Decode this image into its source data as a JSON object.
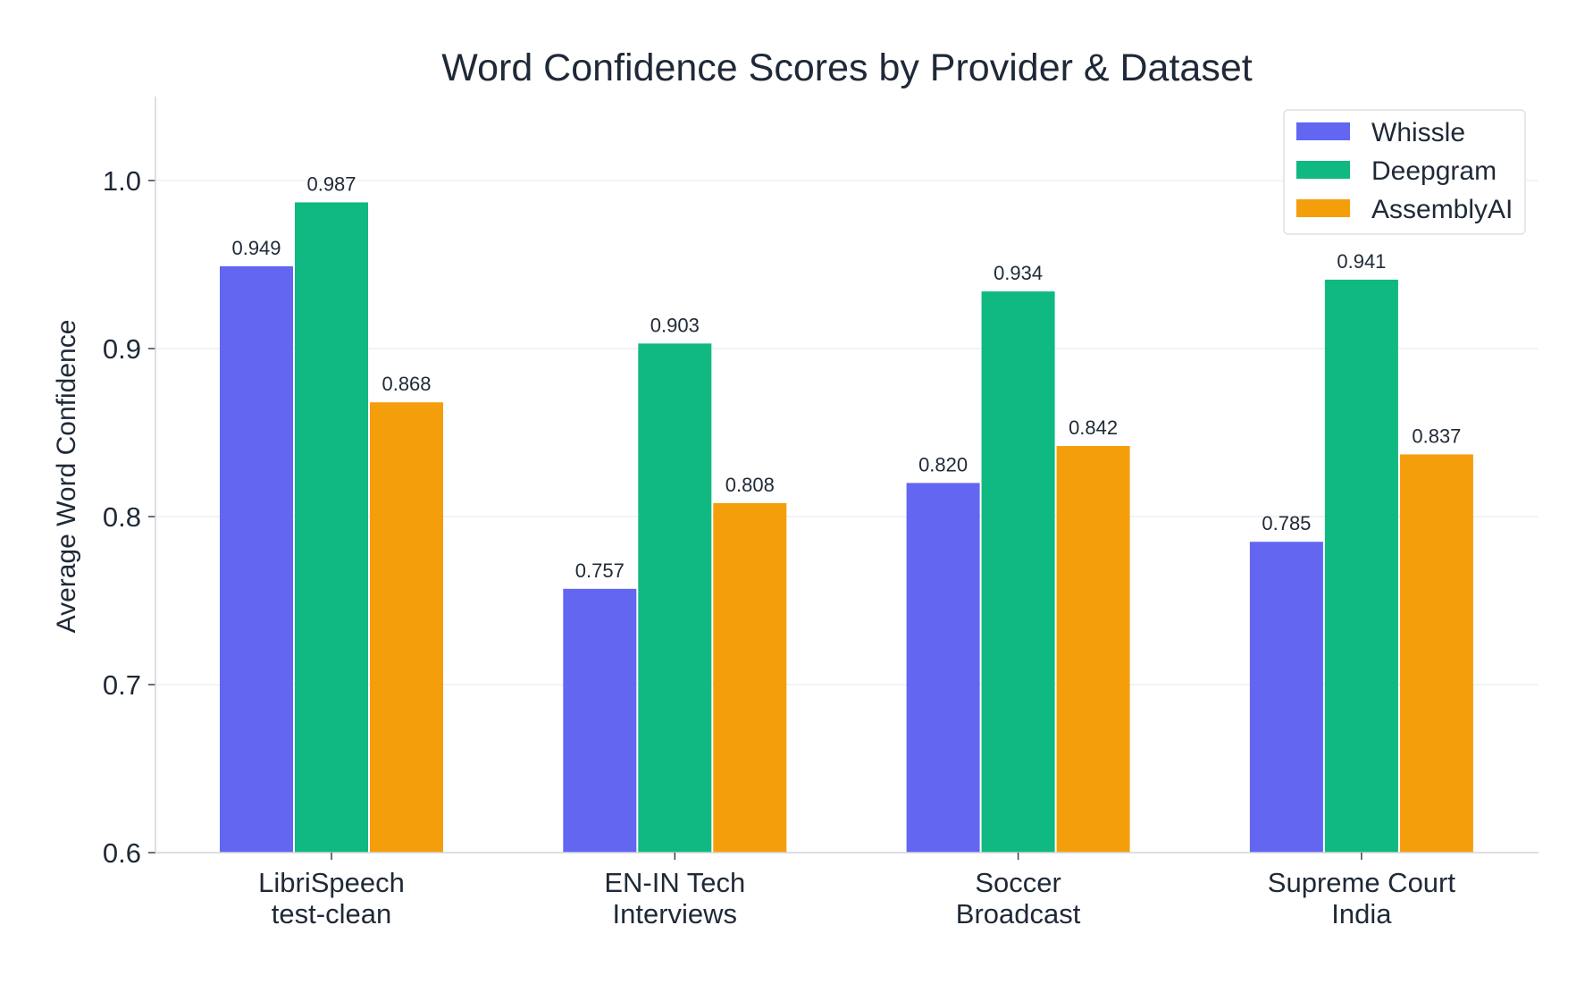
{
  "chart_data": {
    "type": "bar",
    "title": "Word Confidence Scores by Provider & Dataset",
    "xlabel": "",
    "ylabel": "Average Word Confidence",
    "ylim": [
      0.6,
      1.05
    ],
    "yticks": [
      0.6,
      0.7,
      0.8,
      0.9,
      1.0
    ],
    "ytick_labels": [
      "0.6",
      "0.7",
      "0.8",
      "0.9",
      "1.0"
    ],
    "grid": "horizontal",
    "legend_position": "top-right",
    "categories": [
      [
        "LibriSpeech",
        "test-clean"
      ],
      [
        "EN-IN Tech",
        "Interviews"
      ],
      [
        "Soccer",
        "Broadcast"
      ],
      [
        "Supreme Court",
        "India"
      ]
    ],
    "series": [
      {
        "name": "Whissle",
        "color": "#6366f1",
        "values": [
          0.949,
          0.757,
          0.82,
          0.785
        ],
        "labels": [
          "0.949",
          "0.757",
          "0.820",
          "0.785"
        ]
      },
      {
        "name": "Deepgram",
        "color": "#10b981",
        "values": [
          0.987,
          0.903,
          0.934,
          0.941
        ],
        "labels": [
          "0.987",
          "0.903",
          "0.934",
          "0.941"
        ]
      },
      {
        "name": "AssemblyAI",
        "color": "#f59e0b",
        "values": [
          0.868,
          0.808,
          0.842,
          0.837
        ],
        "labels": [
          "0.868",
          "0.808",
          "0.842",
          "0.837"
        ]
      }
    ]
  }
}
